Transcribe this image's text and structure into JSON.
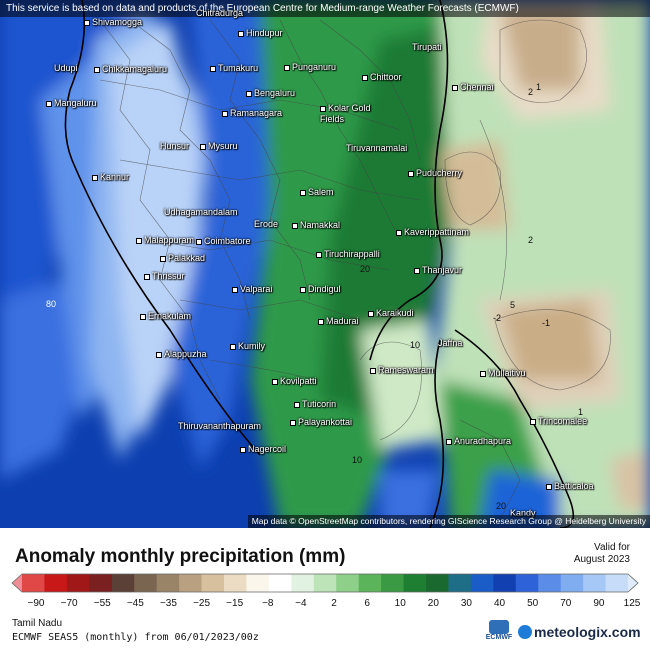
{
  "header": {
    "attribution": "This service is based on data and products of the European Centre for Medium-range Weather Forecasts (ECMWF)"
  },
  "map": {
    "footer_attribution": "Map data © OpenStreetMap contributors, rendering GIScience Research Group @ Heidelberg University",
    "cities": [
      {
        "name": "Shivamogga"
      },
      {
        "name": "Chitradurga"
      },
      {
        "name": "Hindupur"
      },
      {
        "name": "Tirupati"
      },
      {
        "name": "Udupi"
      },
      {
        "name": "Chikkamagaluru"
      },
      {
        "name": "Tumakuru"
      },
      {
        "name": "Punganuru"
      },
      {
        "name": "Chittoor"
      },
      {
        "name": "Chennai"
      },
      {
        "name": "Mangaluru"
      },
      {
        "name": "Bengaluru"
      },
      {
        "name": "Ramanagara"
      },
      {
        "name": "Kolar Gold Fields"
      },
      {
        "name": "Hunsur"
      },
      {
        "name": "Mysuru"
      },
      {
        "name": "Tiruvannamalai"
      },
      {
        "name": "Kannur"
      },
      {
        "name": "Puducherry"
      },
      {
        "name": "Salem"
      },
      {
        "name": "Udhagamandalam"
      },
      {
        "name": "Erode"
      },
      {
        "name": "Namakkal"
      },
      {
        "name": "Kaverippattinam"
      },
      {
        "name": "Malappuram"
      },
      {
        "name": "Coimbatore"
      },
      {
        "name": "Palakkad"
      },
      {
        "name": "Tiruchirappalli"
      },
      {
        "name": "Thanjavur"
      },
      {
        "name": "Thrissur"
      },
      {
        "name": "Valparai"
      },
      {
        "name": "Dindigul"
      },
      {
        "name": "Ernakulam"
      },
      {
        "name": "Madurai"
      },
      {
        "name": "Karaikudi"
      },
      {
        "name": "Jaffna"
      },
      {
        "name": "Kumily"
      },
      {
        "name": "Alappuzha"
      },
      {
        "name": "Rameswaram"
      },
      {
        "name": "Mullaitivu"
      },
      {
        "name": "Kovilpatti"
      },
      {
        "name": "Tuticorin"
      },
      {
        "name": "Trincomalee"
      },
      {
        "name": "Palayankottai"
      },
      {
        "name": "Thiruvananthapuram"
      },
      {
        "name": "Anuradhapura"
      },
      {
        "name": "Nagercoil"
      },
      {
        "name": "Batticaloa"
      },
      {
        "name": "Kandy"
      }
    ],
    "contour_labels": [
      "80",
      "2",
      "1",
      "20",
      "5",
      "2",
      "-2",
      "-1",
      "10",
      "1",
      "10",
      "20"
    ]
  },
  "legend": {
    "title": "Anomaly monthly precipitation (mm)",
    "valid_line1": "Valid for",
    "valid_line2": "August 2023",
    "ticks": [
      "−90",
      "−70",
      "−55",
      "−45",
      "−35",
      "−25",
      "−15",
      "−8",
      "−4",
      "2",
      "6",
      "10",
      "20",
      "30",
      "40",
      "50",
      "70",
      "90",
      "125"
    ],
    "colors": [
      "#f08c96",
      "#e04848",
      "#c81818",
      "#a01818",
      "#7a2020",
      "#5a4036",
      "#7a6650",
      "#9a8468",
      "#b8a080",
      "#d6c09e",
      "#ecdcc4",
      "#fbf6ec",
      "#ffffff",
      "#e2f2e2",
      "#bce4b8",
      "#8ed08a",
      "#5cb45a",
      "#3a9a44",
      "#1e7e32",
      "#1a6a30",
      "#1e6e88",
      "#1a5cc8",
      "#1240b0",
      "#2e62d8",
      "#5a8ce8",
      "#80acf0",
      "#a6c8f6",
      "#c6dcf8",
      "#e0ecfc"
    ],
    "region": "Tamil Nadu",
    "model": "ECMWF SEAS5 (monthly) from 06/01/2023/00z",
    "brand": "meteologix.com",
    "ecmwf_logo": "ECMWF"
  }
}
